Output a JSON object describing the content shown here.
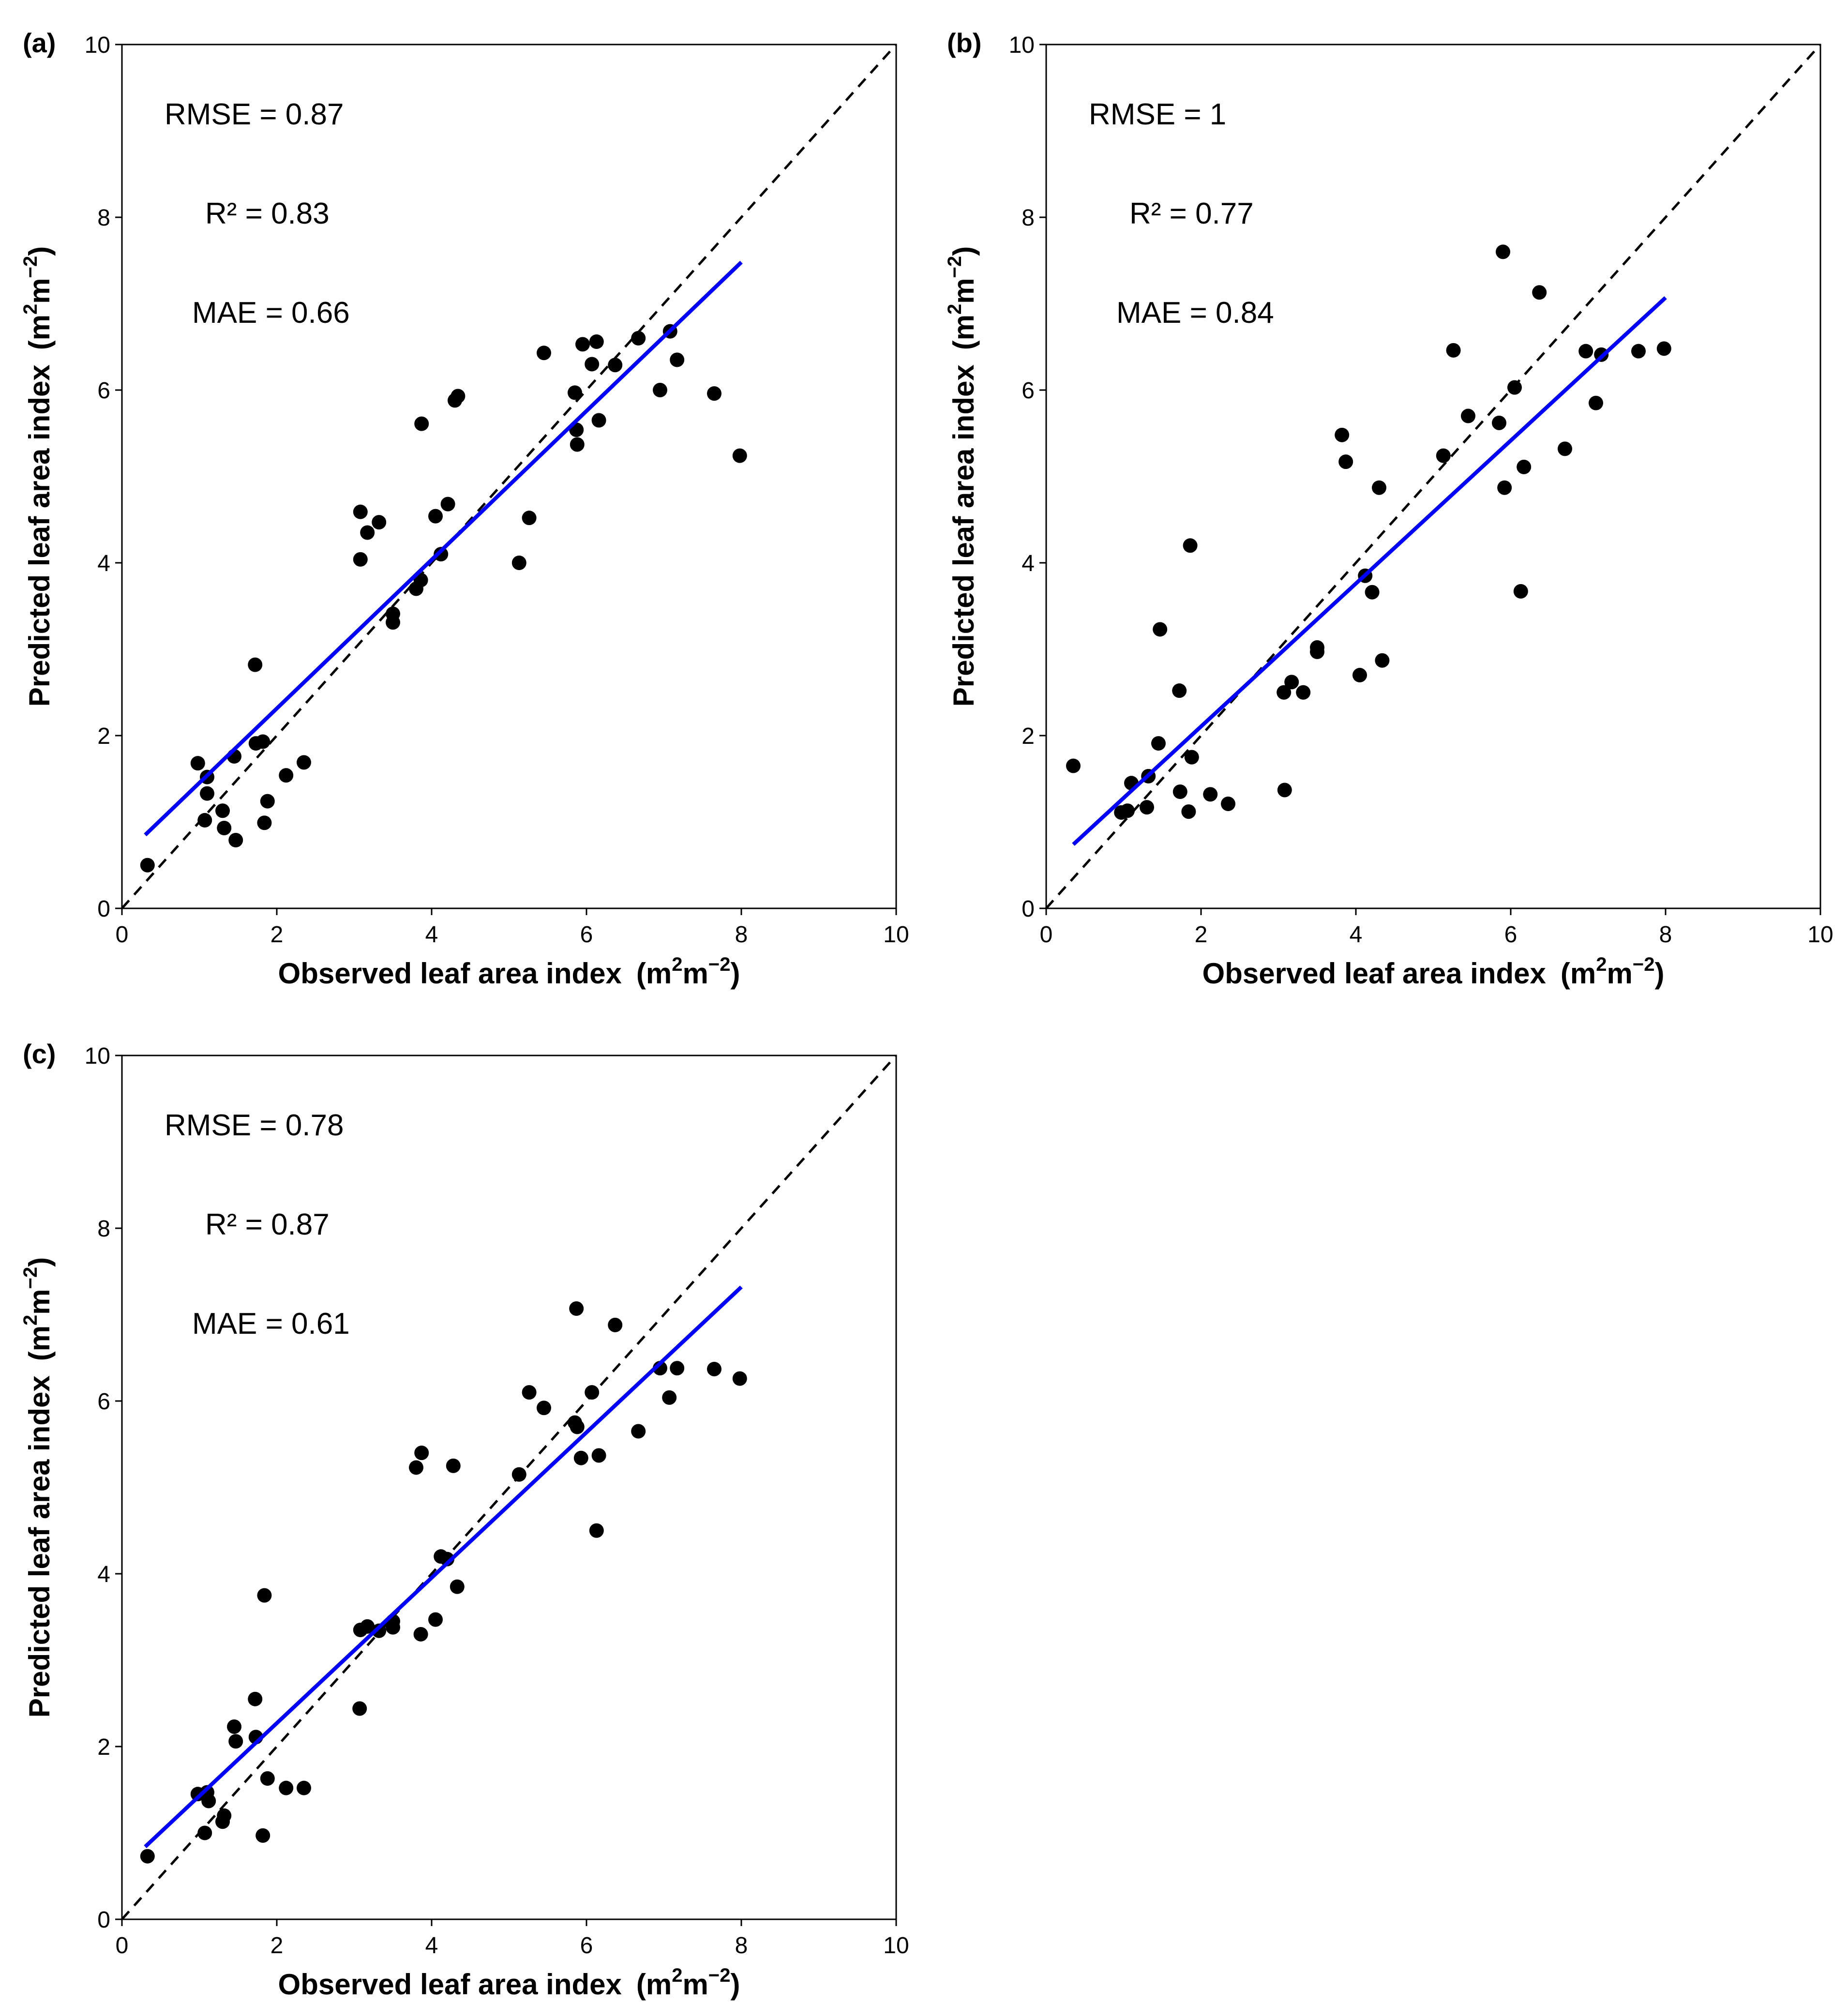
{
  "figure_title": "",
  "colors": {
    "point": "#000000",
    "fit_line": "#0000ff",
    "one_to_one": "#000000",
    "axis": "#000000"
  },
  "chart_data": [
    {
      "type": "scatter",
      "panel_label": "(a)",
      "xlabel": "Observed leaf area index",
      "ylabel": "Predicted leaf area index",
      "unit": {
        "base": "(m",
        "sup1": "2",
        "mid": "m",
        "sup2": "−2",
        "close": ")"
      },
      "xlim": [
        0,
        10
      ],
      "ylim": [
        0,
        10
      ],
      "xticks": [
        "0",
        "2",
        "4",
        "6",
        "8",
        "10"
      ],
      "yticks": [
        "0",
        "2",
        "4",
        "6",
        "8",
        "10"
      ],
      "stats": [
        "RMSE =  0.87",
        "R² = 0.83",
        "MAE = 0.66"
      ],
      "fit_line": {
        "x": [
          0.3,
          8.0
        ],
        "y": [
          0.85,
          7.48
        ]
      },
      "one_to_one": {
        "x": [
          0,
          10
        ],
        "y": [
          0,
          10
        ]
      },
      "x": [
        0.33,
        0.98,
        1.07,
        1.1,
        1.1,
        1.3,
        1.32,
        1.45,
        1.47,
        1.72,
        1.73,
        1.82,
        1.84,
        1.88,
        2.12,
        2.35,
        3.08,
        3.08,
        3.17,
        3.32,
        3.5,
        3.5,
        3.8,
        3.86,
        3.87,
        4.05,
        4.12,
        4.21,
        4.3,
        4.34,
        5.13,
        5.26,
        5.45,
        5.85,
        5.87,
        5.88,
        5.95,
        6.07,
        6.13,
        6.16,
        6.37,
        6.67,
        6.95,
        7.08,
        7.17,
        7.65,
        7.98
      ],
      "y": [
        0.5,
        1.68,
        1.02,
        1.52,
        1.33,
        1.13,
        0.93,
        1.76,
        0.79,
        2.82,
        1.91,
        1.93,
        0.99,
        1.24,
        1.54,
        1.69,
        4.59,
        4.04,
        4.35,
        4.47,
        3.41,
        3.31,
        3.7,
        3.8,
        5.61,
        4.54,
        4.1,
        4.68,
        5.88,
        5.93,
        4.0,
        4.52,
        6.43,
        5.97,
        5.54,
        5.37,
        6.53,
        6.3,
        6.56,
        5.65,
        6.29,
        6.6,
        6.0,
        6.68,
        6.35,
        5.96,
        5.24
      ]
    },
    {
      "type": "scatter",
      "panel_label": "(b)",
      "xlabel": "Observed leaf area index",
      "ylabel": "Predicted leaf area index",
      "unit": {
        "base": "(m",
        "sup1": "2",
        "mid": "m",
        "sup2": "−2",
        "close": ")"
      },
      "xlim": [
        0,
        10
      ],
      "ylim": [
        0,
        10
      ],
      "xticks": [
        "0",
        "2",
        "4",
        "6",
        "8",
        "10"
      ],
      "yticks": [
        "0",
        "2",
        "4",
        "6",
        "8",
        "10"
      ],
      "stats": [
        "RMSE =  1",
        "R² = 0.77",
        "MAE = 0.84"
      ],
      "fit_line": {
        "x": [
          0.35,
          8.0
        ],
        "y": [
          0.74,
          7.07
        ]
      },
      "one_to_one": {
        "x": [
          0,
          10
        ],
        "y": [
          0,
          10
        ]
      },
      "x": [
        0.35,
        0.97,
        1.05,
        1.1,
        1.3,
        1.32,
        1.45,
        1.47,
        1.72,
        1.73,
        1.84,
        1.86,
        1.88,
        2.12,
        2.35,
        3.07,
        3.08,
        3.17,
        3.32,
        3.5,
        3.5,
        3.82,
        3.87,
        4.05,
        4.12,
        4.21,
        4.3,
        4.34,
        5.13,
        5.26,
        5.45,
        5.85,
        5.9,
        5.92,
        6.05,
        6.13,
        6.17,
        6.37,
        6.7,
        6.97,
        7.1,
        7.17,
        7.65,
        7.98
      ],
      "y": [
        1.65,
        1.11,
        1.13,
        1.45,
        1.17,
        1.53,
        1.91,
        3.23,
        2.52,
        1.35,
        1.12,
        4.2,
        1.75,
        1.32,
        1.21,
        2.5,
        1.37,
        2.62,
        2.5,
        3.02,
        2.97,
        5.48,
        5.17,
        2.7,
        3.85,
        3.66,
        4.87,
        2.87,
        5.24,
        6.46,
        5.7,
        5.62,
        7.6,
        4.87,
        6.03,
        3.67,
        5.11,
        7.13,
        5.32,
        6.45,
        5.85,
        6.41,
        6.45,
        6.48
      ]
    },
    {
      "type": "scatter",
      "panel_label": "(c)",
      "xlabel": "Observed leaf area index",
      "ylabel": "Predicted leaf area index",
      "unit": {
        "base": "(m",
        "sup1": "2",
        "mid": "m",
        "sup2": "−2",
        "close": ")"
      },
      "xlim": [
        0,
        10
      ],
      "ylim": [
        0,
        10
      ],
      "xticks": [
        "0",
        "2",
        "4",
        "6",
        "8",
        "10"
      ],
      "yticks": [
        "0",
        "2",
        "4",
        "6",
        "8",
        "10"
      ],
      "stats": [
        "RMSE =  0.78",
        "R² = 0.87",
        "MAE = 0.61"
      ],
      "fit_line": {
        "x": [
          0.3,
          8.0
        ],
        "y": [
          0.84,
          7.32
        ]
      },
      "one_to_one": {
        "x": [
          0,
          10
        ],
        "y": [
          0,
          10
        ]
      },
      "x": [
        0.33,
        0.98,
        1.07,
        1.1,
        1.12,
        1.3,
        1.32,
        1.45,
        1.47,
        1.72,
        1.73,
        1.82,
        1.84,
        1.88,
        2.12,
        2.35,
        3.07,
        3.08,
        3.17,
        3.32,
        3.5,
        3.5,
        3.8,
        3.86,
        3.87,
        4.05,
        4.12,
        4.2,
        4.28,
        4.33,
        5.13,
        5.26,
        5.45,
        5.85,
        5.87,
        5.88,
        5.93,
        6.07,
        6.13,
        6.16,
        6.37,
        6.67,
        6.95,
        7.07,
        7.17,
        7.65,
        7.98
      ],
      "y": [
        0.73,
        1.45,
        1.0,
        1.47,
        1.37,
        1.13,
        1.2,
        2.23,
        2.06,
        2.55,
        2.11,
        0.97,
        3.75,
        1.63,
        1.52,
        1.52,
        2.44,
        3.35,
        3.39,
        3.34,
        3.38,
        3.45,
        5.23,
        3.3,
        5.4,
        3.47,
        4.2,
        4.17,
        5.25,
        3.85,
        5.15,
        6.1,
        5.92,
        5.75,
        7.07,
        5.7,
        5.34,
        6.1,
        4.5,
        5.37,
        6.88,
        5.65,
        6.38,
        6.04,
        6.38,
        6.37,
        6.26
      ]
    }
  ]
}
